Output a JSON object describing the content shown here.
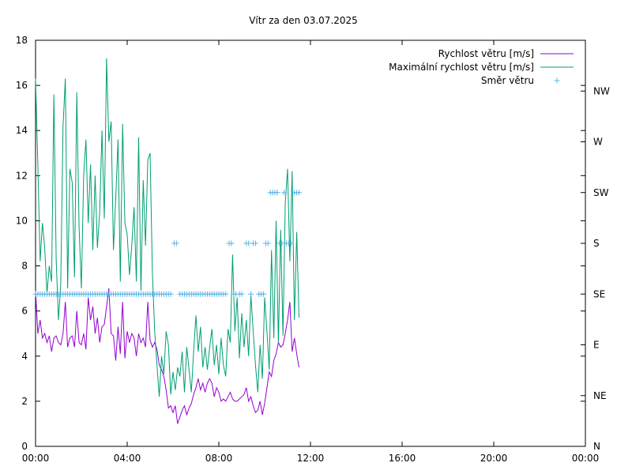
{
  "chart_data": {
    "type": "line",
    "title": "Vítr za den 03.07.2025",
    "xlabel": "",
    "ylabel": "",
    "xlim": [
      0,
      24
    ],
    "ylim": [
      0,
      18
    ],
    "x_ticks": [
      {
        "value": 0,
        "label": "00:00"
      },
      {
        "value": 4,
        "label": "04:00"
      },
      {
        "value": 8,
        "label": "08:00"
      },
      {
        "value": 12,
        "label": "12:00"
      },
      {
        "value": 16,
        "label": "16:00"
      },
      {
        "value": 20,
        "label": "20:00"
      },
      {
        "value": 24,
        "label": "00:00"
      }
    ],
    "y_ticks": [
      0,
      2,
      4,
      6,
      8,
      10,
      12,
      14,
      16,
      18
    ],
    "y2_ticks": [
      {
        "value": 0,
        "label": "N"
      },
      {
        "value": 45,
        "label": "NE"
      },
      {
        "value": 90,
        "label": "E"
      },
      {
        "value": 135,
        "label": "SE"
      },
      {
        "value": 180,
        "label": "S"
      },
      {
        "value": 225,
        "label": "SW"
      },
      {
        "value": 270,
        "label": "W"
      },
      {
        "value": 315,
        "label": "NW"
      }
    ],
    "y2lim": [
      0,
      360
    ],
    "grid": false,
    "legend_position": "top-right",
    "series": [
      {
        "name": "Rychlost větru [m/s]",
        "color": "#9400d3",
        "axis": "y",
        "style": "line",
        "x": [
          0.0,
          0.1,
          0.2,
          0.3,
          0.4,
          0.5,
          0.6,
          0.7,
          0.8,
          0.9,
          1.0,
          1.1,
          1.2,
          1.3,
          1.4,
          1.5,
          1.6,
          1.7,
          1.8,
          1.9,
          2.0,
          2.1,
          2.2,
          2.3,
          2.4,
          2.5,
          2.6,
          2.7,
          2.8,
          2.9,
          3.0,
          3.1,
          3.2,
          3.3,
          3.4,
          3.5,
          3.6,
          3.7,
          3.8,
          3.9,
          4.0,
          4.1,
          4.2,
          4.3,
          4.4,
          4.5,
          4.6,
          4.7,
          4.8,
          4.9,
          5.0,
          5.1,
          5.2,
          5.3,
          5.4,
          5.5,
          5.6,
          5.7,
          5.8,
          5.9,
          6.0,
          6.1,
          6.2,
          6.3,
          6.4,
          6.5,
          6.6,
          6.7,
          6.8,
          6.9,
          7.0,
          7.1,
          7.2,
          7.3,
          7.4,
          7.5,
          7.6,
          7.7,
          7.8,
          7.9,
          8.0,
          8.1,
          8.2,
          8.3,
          8.4,
          8.5,
          8.6,
          8.7,
          8.8,
          8.9,
          9.0,
          9.1,
          9.2,
          9.3,
          9.4,
          9.5,
          9.6,
          9.7,
          9.8,
          9.9,
          10.0,
          10.1,
          10.2,
          10.3,
          10.4,
          10.5,
          10.6,
          10.7,
          10.8,
          10.9,
          11.0,
          11.1,
          11.2,
          11.3,
          11.4,
          11.5
        ],
        "values": [
          6.9,
          5.0,
          5.6,
          4.8,
          5.0,
          4.6,
          4.9,
          4.2,
          4.8,
          4.9,
          4.6,
          4.5,
          5.0,
          6.4,
          4.4,
          4.8,
          4.9,
          4.4,
          6.0,
          4.6,
          4.5,
          5.0,
          4.3,
          6.6,
          5.6,
          6.2,
          5.0,
          5.7,
          4.6,
          5.3,
          5.4,
          6.2,
          7.0,
          5.0,
          4.9,
          3.8,
          5.3,
          4.1,
          6.4,
          3.9,
          5.1,
          4.6,
          5.0,
          4.8,
          4.0,
          5.0,
          4.6,
          4.8,
          4.4,
          6.4,
          4.7,
          4.4,
          4.6,
          4.3,
          3.6,
          3.4,
          3.1,
          2.5,
          1.7,
          1.8,
          1.5,
          1.8,
          1.0,
          1.3,
          1.6,
          1.8,
          1.4,
          1.7,
          1.9,
          2.3,
          2.6,
          3.0,
          2.5,
          2.8,
          2.4,
          2.8,
          3.0,
          2.8,
          2.2,
          2.6,
          2.4,
          2.0,
          2.1,
          2.0,
          2.2,
          2.4,
          2.1,
          2.0,
          2.0,
          2.1,
          2.2,
          2.3,
          2.6,
          2.0,
          2.2,
          1.8,
          1.5,
          1.6,
          2.0,
          1.4,
          1.9,
          2.6,
          3.3,
          3.1,
          3.8,
          4.1,
          4.6,
          4.4,
          4.5,
          5.0,
          5.6,
          6.4,
          4.2,
          4.8,
          4.1,
          3.5
        ]
      },
      {
        "name": "Maximální rychlost větru [m/s]",
        "color": "#009e73",
        "axis": "y",
        "style": "line",
        "x": [
          0.0,
          0.1,
          0.2,
          0.3,
          0.4,
          0.5,
          0.6,
          0.7,
          0.8,
          0.9,
          1.0,
          1.1,
          1.2,
          1.3,
          1.4,
          1.5,
          1.6,
          1.7,
          1.8,
          1.9,
          2.0,
          2.1,
          2.2,
          2.3,
          2.4,
          2.5,
          2.6,
          2.7,
          2.8,
          2.9,
          3.0,
          3.1,
          3.2,
          3.3,
          3.4,
          3.5,
          3.6,
          3.7,
          3.8,
          3.9,
          4.0,
          4.1,
          4.2,
          4.3,
          4.4,
          4.5,
          4.6,
          4.7,
          4.8,
          4.9,
          5.0,
          5.1,
          5.2,
          5.3,
          5.4,
          5.5,
          5.6,
          5.7,
          5.8,
          5.9,
          6.0,
          6.1,
          6.2,
          6.3,
          6.4,
          6.5,
          6.6,
          6.7,
          6.8,
          6.9,
          7.0,
          7.1,
          7.2,
          7.3,
          7.4,
          7.5,
          7.6,
          7.7,
          7.8,
          7.9,
          8.0,
          8.1,
          8.2,
          8.3,
          8.4,
          8.5,
          8.6,
          8.7,
          8.8,
          8.9,
          9.0,
          9.1,
          9.2,
          9.3,
          9.4,
          9.5,
          9.6,
          9.7,
          9.8,
          9.9,
          10.0,
          10.1,
          10.2,
          10.3,
          10.4,
          10.5,
          10.6,
          10.7,
          10.8,
          10.9,
          11.0,
          11.1,
          11.2,
          11.3,
          11.4,
          11.5
        ],
        "values": [
          16.3,
          12.5,
          8.2,
          9.9,
          8.8,
          6.8,
          8.0,
          7.3,
          15.6,
          8.3,
          5.6,
          7.2,
          14.2,
          16.3,
          7.0,
          12.3,
          11.7,
          7.5,
          15.7,
          9.7,
          7.0,
          12.0,
          13.6,
          9.9,
          12.5,
          8.7,
          12.0,
          8.8,
          10.4,
          14.0,
          10.1,
          17.2,
          13.5,
          14.4,
          8.7,
          11.0,
          13.6,
          7.3,
          14.3,
          9.9,
          9.4,
          7.6,
          8.9,
          10.6,
          7.3,
          13.7,
          6.9,
          11.8,
          8.9,
          12.7,
          13.0,
          7.7,
          5.1,
          3.6,
          2.2,
          4.0,
          3.2,
          5.1,
          4.5,
          2.3,
          3.3,
          2.5,
          3.5,
          3.1,
          4.2,
          2.4,
          4.4,
          3.4,
          2.4,
          4.2,
          5.8,
          4.2,
          5.3,
          3.5,
          4.4,
          3.4,
          4.4,
          5.2,
          3.6,
          4.5,
          3.2,
          4.8,
          3.6,
          3.1,
          5.2,
          4.6,
          8.5,
          5.1,
          6.6,
          3.9,
          5.9,
          4.4,
          5.6,
          4.0,
          6.7,
          5.1,
          3.6,
          2.4,
          4.5,
          3.0,
          6.6,
          5.1,
          3.4,
          8.7,
          4.8,
          10.0,
          4.6,
          9.6,
          4.9,
          10.8,
          12.3,
          8.2,
          12.2,
          5.6,
          9.5,
          5.7
        ]
      },
      {
        "name": "Směr větru",
        "color": "#56b4e9",
        "axis": "y2",
        "style": "points",
        "x": [
          0.0,
          0.1,
          0.2,
          0.3,
          0.4,
          0.5,
          0.6,
          0.7,
          0.8,
          0.9,
          1.0,
          1.1,
          1.2,
          1.3,
          1.4,
          1.5,
          1.6,
          1.7,
          1.8,
          1.9,
          2.0,
          2.1,
          2.2,
          2.3,
          2.4,
          2.5,
          2.6,
          2.7,
          2.8,
          2.9,
          3.0,
          3.1,
          3.2,
          3.3,
          3.4,
          3.5,
          3.6,
          3.7,
          3.8,
          3.9,
          4.0,
          4.1,
          4.2,
          4.3,
          4.4,
          4.5,
          4.6,
          4.7,
          4.8,
          4.9,
          5.0,
          5.1,
          5.2,
          5.3,
          5.4,
          5.5,
          5.6,
          5.7,
          5.8,
          5.9,
          6.05,
          6.15,
          6.3,
          6.4,
          6.5,
          6.6,
          6.7,
          6.8,
          6.9,
          7.0,
          7.1,
          7.2,
          7.3,
          7.4,
          7.5,
          7.6,
          7.7,
          7.8,
          7.9,
          8.0,
          8.1,
          8.2,
          8.3,
          8.45,
          8.55,
          8.65,
          8.75,
          8.9,
          9.0,
          9.2,
          9.3,
          9.4,
          9.5,
          9.6,
          9.75,
          9.85,
          9.95,
          10.05,
          10.15,
          10.25,
          10.35,
          10.45,
          10.55,
          10.65,
          10.75,
          10.85,
          10.95,
          11.05,
          11.15,
          11.3,
          11.4,
          11.5
        ],
        "values": [
          135,
          135,
          135,
          135,
          135,
          135,
          135,
          135,
          135,
          135,
          135,
          135,
          135,
          135,
          135,
          135,
          135,
          135,
          135,
          135,
          135,
          135,
          135,
          135,
          135,
          135,
          135,
          135,
          135,
          135,
          135,
          135,
          135,
          135,
          135,
          135,
          135,
          135,
          135,
          135,
          135,
          135,
          135,
          135,
          135,
          135,
          135,
          135,
          135,
          135,
          135,
          135,
          135,
          135,
          135,
          135,
          135,
          135,
          135,
          135,
          180,
          180,
          135,
          135,
          135,
          135,
          135,
          135,
          135,
          135,
          135,
          135,
          135,
          135,
          135,
          135,
          135,
          135,
          135,
          135,
          135,
          135,
          135,
          180,
          180,
          135,
          135,
          135,
          135,
          180,
          180,
          135,
          180,
          180,
          135,
          135,
          135,
          180,
          180,
          225,
          225,
          225,
          225,
          180,
          180,
          225,
          180,
          180,
          180,
          225,
          225,
          225
        ]
      }
    ]
  }
}
